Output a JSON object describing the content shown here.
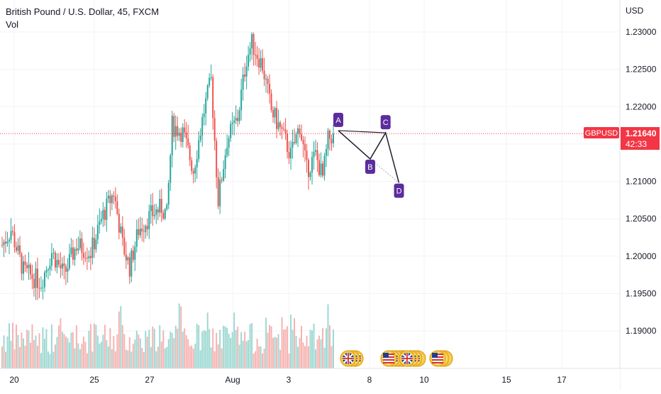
{
  "header": {
    "title": "British Pound / U.S. Dollar, 45, FXCM",
    "indicator": "Vol"
  },
  "price_axis": {
    "currency": "USD",
    "ticks": [
      "1.23000",
      "1.22500",
      "1.22000",
      "1.21500",
      "1.21000",
      "1.20500",
      "1.20000",
      "1.19500",
      "1.19000"
    ]
  },
  "time_axis": {
    "ticks": [
      "20",
      "25",
      "27",
      "Aug",
      "3",
      "8",
      "10",
      "15",
      "17"
    ]
  },
  "last_price": {
    "symbol": "GBPUSD",
    "value": "1.21640",
    "countdown": "42:33",
    "price": 1.2164
  },
  "colors": {
    "up": "#26a69a",
    "down": "#ef5350",
    "vol_up": "#9ed8d2",
    "vol_down": "#f6b3b1",
    "grid": "#f0f3fa",
    "pattern": "#5b2c9e",
    "price_label": "#f23645"
  },
  "chart_data": {
    "type": "candlestick",
    "ylim": [
      1.1855,
      1.2335
    ],
    "y_ticks": [
      1.23,
      1.225,
      1.22,
      1.215,
      1.21,
      1.205,
      1.2,
      1.195,
      1.19
    ],
    "x_ticks": [
      "20",
      "25",
      "27",
      "Aug",
      "3",
      "8",
      "10",
      "15",
      "17"
    ],
    "grid": true,
    "trend_anchors": [
      {
        "i": 0,
        "p": 1.2015
      },
      {
        "i": 5,
        "p": 1.2035
      },
      {
        "i": 12,
        "p": 1.198
      },
      {
        "i": 22,
        "p": 1.1965
      },
      {
        "i": 28,
        "p": 1.2005
      },
      {
        "i": 35,
        "p": 1.1975
      },
      {
        "i": 42,
        "p": 1.2015
      },
      {
        "i": 50,
        "p": 1.2005
      },
      {
        "i": 57,
        "p": 1.2055
      },
      {
        "i": 63,
        "p": 1.2085
      },
      {
        "i": 68,
        "p": 1.2015
      },
      {
        "i": 72,
        "p": 1.1985
      },
      {
        "i": 77,
        "p": 1.2035
      },
      {
        "i": 84,
        "p": 1.2055
      },
      {
        "i": 90,
        "p": 1.2065
      },
      {
        "i": 93,
        "p": 1.2055
      },
      {
        "i": 96,
        "p": 1.2175
      },
      {
        "i": 102,
        "p": 1.2165
      },
      {
        "i": 108,
        "p": 1.2115
      },
      {
        "i": 114,
        "p": 1.2195
      },
      {
        "i": 118,
        "p": 1.2235
      },
      {
        "i": 122,
        "p": 1.2075
      },
      {
        "i": 127,
        "p": 1.2155
      },
      {
        "i": 133,
        "p": 1.2185
      },
      {
        "i": 138,
        "p": 1.2265
      },
      {
        "i": 141,
        "p": 1.2285
      },
      {
        "i": 147,
        "p": 1.2255
      },
      {
        "i": 152,
        "p": 1.2195
      },
      {
        "i": 158,
        "p": 1.2165
      },
      {
        "i": 163,
        "p": 1.2135
      },
      {
        "i": 168,
        "p": 1.2175
      },
      {
        "i": 172,
        "p": 1.2115
      },
      {
        "i": 177,
        "p": 1.2135
      },
      {
        "i": 181,
        "p": 1.2105
      },
      {
        "i": 184,
        "p": 1.2155
      },
      {
        "i": 187,
        "p": 1.2164
      }
    ],
    "pattern_points": [
      {
        "label": "A",
        "day": 0.0,
        "price": 1.2168
      },
      {
        "label": "B",
        "day": 1.55,
        "price": 1.213
      },
      {
        "label": "C",
        "day": 2.3,
        "price": 1.2165
      },
      {
        "label": "D",
        "day": 2.95,
        "price": 1.2098
      }
    ]
  },
  "events": {
    "group1": [
      "uk-flag",
      "uk-flag",
      "uk-flag"
    ],
    "group2": [
      "us-flag",
      "uk-flag",
      "uk-flag",
      "coin",
      "coin"
    ],
    "group3": [
      "uk-flag",
      "uk-flag",
      "uk-flag",
      "coin"
    ],
    "group4": [
      "us-flag",
      "coin",
      "coin"
    ]
  }
}
